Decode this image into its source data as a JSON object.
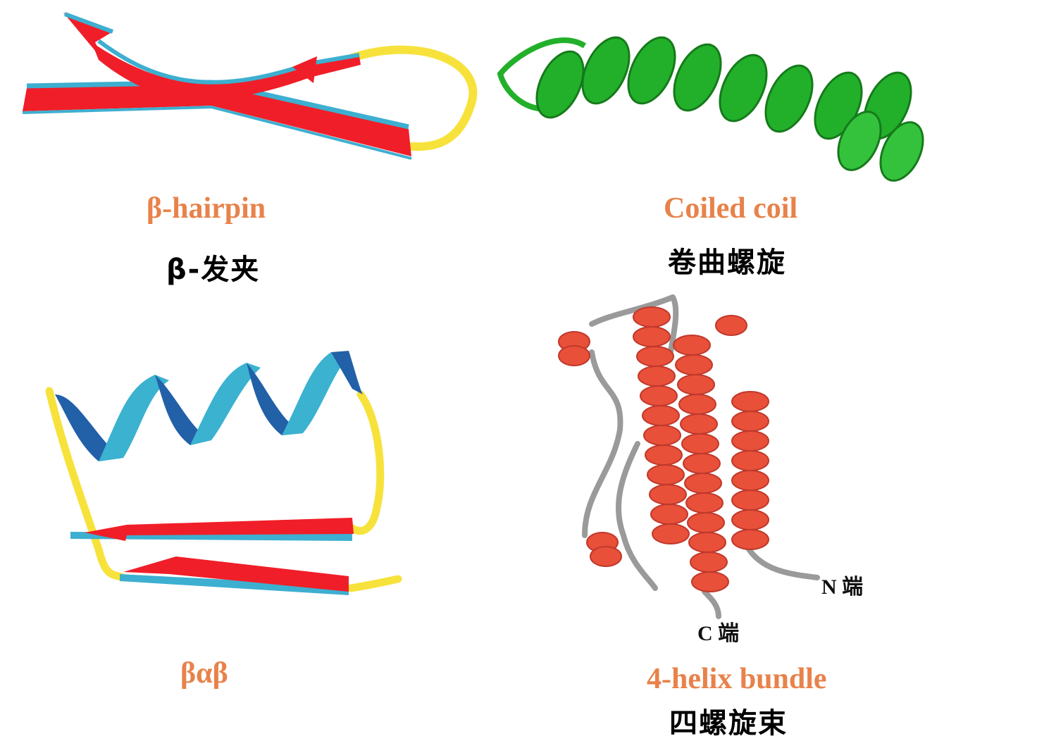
{
  "panels": {
    "hairpin": {
      "label_en": "β-hairpin",
      "label_zh": "β-发夹"
    },
    "coiled_coil": {
      "label_en": "Coiled coil",
      "label_zh": "卷曲螺旋"
    },
    "bab": {
      "label_en": "βαβ"
    },
    "four_helix": {
      "label_en": "4-helix bundle",
      "label_zh": "四螺旋束",
      "n_end": "N 端",
      "c_end": "C 端"
    }
  },
  "colors": {
    "label_orange": "#E8824A",
    "strand_red": "#F01E28",
    "strand_edge": "#3DAFD0",
    "loop_yellow": "#F7E23C",
    "coil_green": "#22B02A",
    "helix_dark_blue": "#2260A8",
    "helix_light_blue": "#3AB2D0",
    "bundle_red": "#E8503A",
    "bundle_gray": "#9A9A9A"
  }
}
